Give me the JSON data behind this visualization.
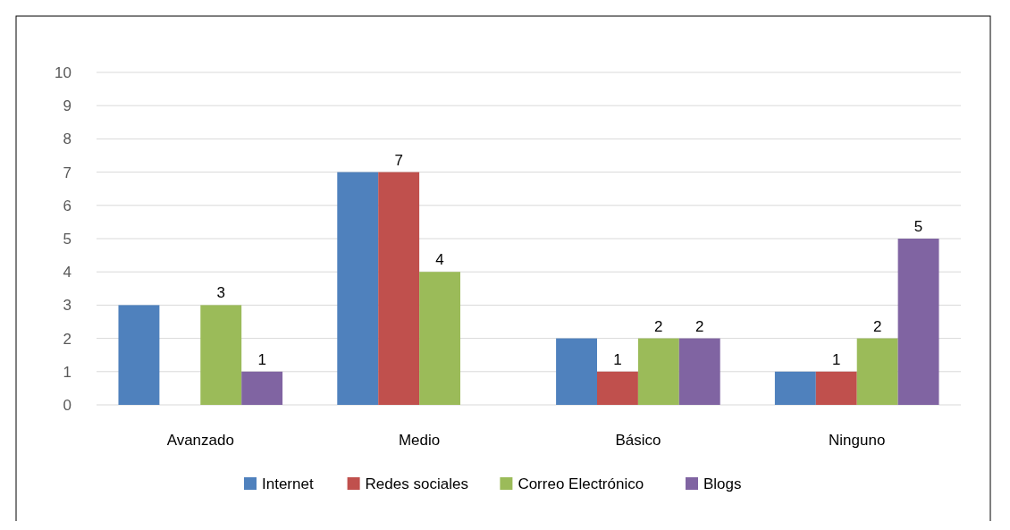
{
  "chart_data": {
    "type": "bar",
    "categories": [
      "Avanzado",
      "Medio",
      "Básico",
      "Ninguno"
    ],
    "series": [
      {
        "name": "Internet",
        "color": "#4f81bd",
        "values": [
          3,
          7,
          2,
          1
        ]
      },
      {
        "name": "Redes sociales",
        "color": "#c0504d",
        "values": [
          null,
          7,
          1,
          1
        ],
        "value_labels": [
          null,
          "7",
          "1",
          "1"
        ]
      },
      {
        "name": "Correo Electrónico",
        "color": "#9bbb59",
        "values": [
          3,
          4,
          2,
          2
        ],
        "value_labels": [
          "3",
          "4",
          "2",
          "2"
        ]
      },
      {
        "name": "Blogs",
        "color": "#8064a2",
        "values": [
          1,
          null,
          2,
          5
        ],
        "value_labels": [
          "1",
          null,
          "2",
          "5"
        ]
      }
    ],
    "ylim": [
      0,
      10
    ],
    "yticks": [
      0,
      1,
      2,
      3,
      4,
      5,
      6,
      7,
      8,
      9,
      10
    ],
    "grid": "y",
    "legend": "bottom"
  }
}
